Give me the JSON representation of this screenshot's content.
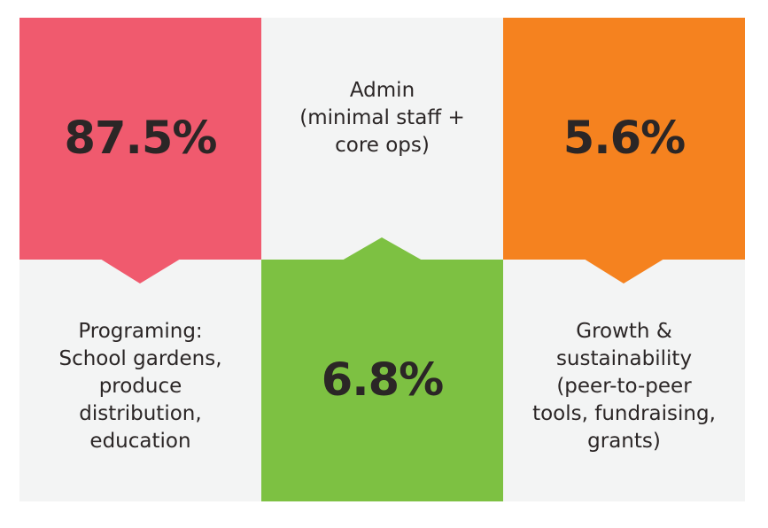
{
  "chart_data": {
    "type": "pie",
    "title": "",
    "slices": [
      {
        "value": 87.5,
        "value_label": "87.5%",
        "label": "Programing:\nSchool gardens,\nproduce\ndistribution,\neducation",
        "color": "#f05a6e"
      },
      {
        "value": 6.8,
        "value_label": "6.8%",
        "label": "Admin\n(minimal staff +\ncore ops)",
        "color": "#7dc142"
      },
      {
        "value": 5.6,
        "value_label": "5.6%",
        "label": "Growth &\nsustainability\n(peer-to-peer\ntools, fundraising,\ngrants)",
        "color": "#f5821f"
      }
    ]
  },
  "colors": {
    "light_tile": "#f3f4f4",
    "text": "#2b2626"
  }
}
